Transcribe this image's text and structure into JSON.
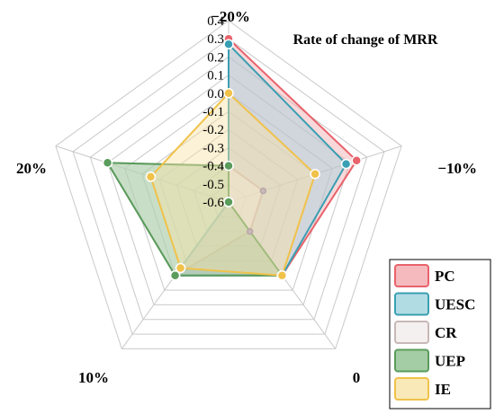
{
  "chart_data": {
    "type": "radar",
    "title": "Rate of change of MRR",
    "axes": [
      "−20%",
      "−10%",
      "0",
      "10%",
      "20%"
    ],
    "rmin": -0.6,
    "rmax": 0.4,
    "ticks": [
      -0.6,
      -0.5,
      -0.4,
      -0.3,
      -0.2,
      -0.1,
      0.0,
      0.1,
      0.2,
      0.3,
      0.4
    ],
    "tick_labels": [
      "-0.6",
      "-0.5",
      "-0.4",
      "-0.3",
      "-0.2",
      "-0.1",
      "0.0",
      "0.1",
      "0.2",
      "0.3",
      "0.4"
    ],
    "grid": true,
    "legend_position": "bottom-right",
    "series": [
      {
        "name": "PC",
        "color": "#e8636b",
        "fill": "#f1a9ae",
        "values": [
          0.3,
          0.14,
          -0.1,
          -0.1,
          -0.6
        ]
      },
      {
        "name": "UESC",
        "color": "#3a9fb2",
        "fill": "#9fd3dd",
        "values": [
          0.27,
          0.08,
          -0.1,
          -0.1,
          -0.6
        ]
      },
      {
        "name": "CR",
        "color": "#c8b8b8",
        "fill": "#f2ecec",
        "values": [
          -0.4,
          -0.4,
          -0.4,
          -0.1,
          0.1
        ]
      },
      {
        "name": "UEP",
        "color": "#5a9c5c",
        "fill": "#8fc08f",
        "values": [
          -0.4,
          -0.6,
          -0.1,
          -0.1,
          0.1
        ]
      },
      {
        "name": "IE",
        "color": "#f0c24a",
        "fill": "#f8e3a6",
        "values": [
          0.0,
          -0.1,
          -0.1,
          -0.15,
          -0.15
        ]
      }
    ]
  }
}
